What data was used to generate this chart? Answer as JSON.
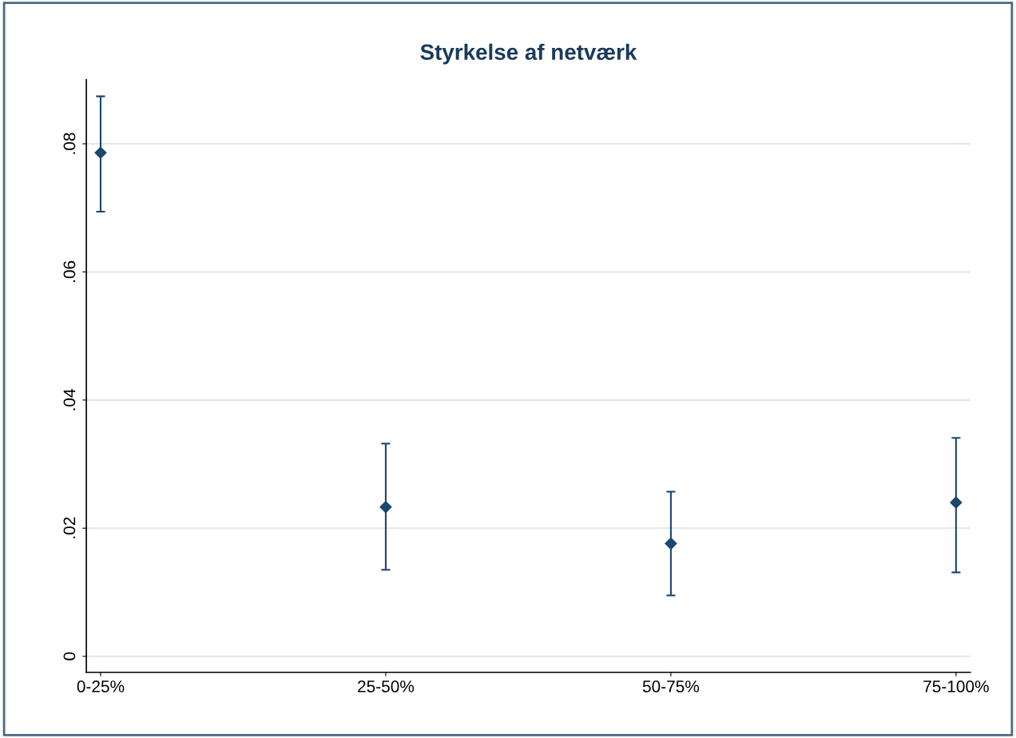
{
  "chart_data": {
    "type": "scatter",
    "title": "Styrkelse af netværk",
    "categories": [
      "0-25%",
      "25-50%",
      "50-75%",
      "75-100%"
    ],
    "values": [
      0.0786,
      0.0233,
      0.0176,
      0.024
    ],
    "errors": [
      [
        0.0694,
        0.0874
      ],
      [
        0.0135,
        0.0332
      ],
      [
        0.0095,
        0.0257
      ],
      [
        0.0131,
        0.0341
      ]
    ],
    "color": "#1a476f",
    "marker": "diamond",
    "ylim": [
      -0.0025,
      0.09
    ],
    "yticks": [
      {
        "value": 0,
        "label": "0"
      },
      {
        "value": 0.02,
        "label": ".02"
      },
      {
        "value": 0.04,
        "label": ".04"
      },
      {
        "value": 0.06,
        "label": ".06"
      },
      {
        "value": 0.08,
        "label": ".08"
      }
    ],
    "grid": "y",
    "legend": false
  }
}
